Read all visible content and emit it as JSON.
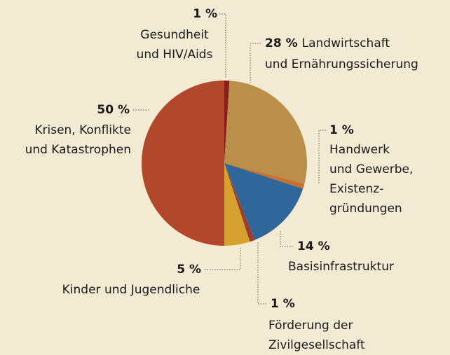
{
  "chart_data": {
    "type": "pie",
    "categories": [
      [
        "Gesundheit",
        "und HIV/Aids"
      ],
      [
        "Landwirtschaft",
        "und Ernährungssicherung"
      ],
      [
        "Handwerk",
        "und Gewerbe,",
        "Existenz-",
        "gründungen"
      ],
      [
        "Basisinfrastruktur"
      ],
      [
        "Förderung der",
        "Zivilgesellschaft"
      ],
      [
        "Kinder und Jugendliche"
      ],
      [
        "Krisen, Konflikte",
        "und Katastrophen"
      ]
    ],
    "values": [
      1,
      28,
      1,
      14,
      1,
      5,
      50
    ],
    "value_labels": [
      "1 %",
      "28 %",
      "1 %",
      "14 %",
      "1 %",
      "5 %",
      "50 %"
    ],
    "colors": [
      "#8a1e1a",
      "#b98f4a",
      "#c8702e",
      "#2f679b",
      "#9a3f2a",
      "#d6a12f",
      "#b1482b"
    ]
  }
}
